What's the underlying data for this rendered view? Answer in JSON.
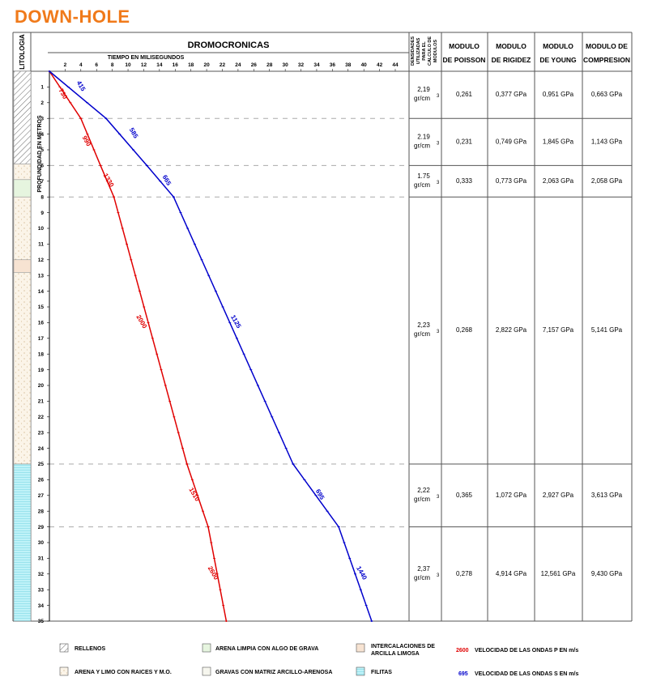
{
  "title": "DOWN-HOLE",
  "colors": {
    "p_wave": "#e00000",
    "s_wave": "#0000cc",
    "title": "#f07a1a",
    "arena_limpia": "#e6f5df",
    "arena_limo": "#fbf4e8",
    "arcilla_limosa": "#f7e3d2",
    "filitas": "#bff2f8"
  },
  "headers": {
    "litologia": "LITOLOGIA",
    "dromocronicas": "DROMOCRONICAS",
    "tiempo": "TIEMPO EN MILISEGUNDOS",
    "profundidad": "PROFUNDIDAD EN METROS",
    "densidades": [
      "DENSIDADES",
      "UTILIZADAS",
      "PARA EL",
      "CALCULO DE",
      "MODULOS"
    ],
    "poisson": [
      "MODULO",
      "DE POISSON"
    ],
    "rigidez": [
      "MODULO",
      "DE RIGIDEZ"
    ],
    "young": [
      "MODULO",
      "DE YOUNG"
    ],
    "compresion": [
      "MODULO DE",
      "COMPRESION"
    ]
  },
  "chart_data": {
    "type": "line",
    "xlabel": "TIEMPO EN MILISEGUNDOS",
    "ylabel": "PROFUNDIDAD EN METROS",
    "xlim": [
      0,
      44
    ],
    "ylim": [
      0,
      35
    ],
    "xticks": [
      2,
      4,
      6,
      8,
      10,
      12,
      14,
      16,
      18,
      20,
      22,
      24,
      26,
      28,
      30,
      32,
      34,
      36,
      38,
      40,
      42,
      44
    ],
    "yticks": [
      1,
      2,
      3,
      4,
      5,
      6,
      7,
      8,
      9,
      10,
      11,
      12,
      13,
      14,
      15,
      16,
      17,
      18,
      19,
      20,
      21,
      22,
      23,
      24,
      25,
      26,
      27,
      28,
      29,
      30,
      31,
      32,
      33,
      34,
      35
    ],
    "series": [
      {
        "name": "VELOCIDAD DE LAS ONDAS P EN m/s",
        "color": "#e00000",
        "points": [
          [
            0,
            0
          ],
          [
            4,
            3
          ],
          [
            6.5,
            6
          ],
          [
            8.2,
            8
          ],
          [
            17.5,
            25
          ],
          [
            20.2,
            29
          ],
          [
            22.5,
            35
          ]
        ],
        "labels": [
          {
            "text": "730",
            "x": 1.5,
            "y": 1.5
          },
          {
            "text": "990",
            "x": 4.5,
            "y": 4.5
          },
          {
            "text": "1330",
            "x": 7.3,
            "y": 7.0
          },
          {
            "text": "2000",
            "x": 11.5,
            "y": 16.0
          },
          {
            "text": "1510",
            "x": 18.2,
            "y": 27.0
          },
          {
            "text": "2600",
            "x": 20.6,
            "y": 32.0
          }
        ]
      },
      {
        "name": "VELOCIDAD DE LAS ONDAS S EN m/s",
        "color": "#0000cc",
        "points": [
          [
            0,
            0
          ],
          [
            7.2,
            3
          ],
          [
            12.4,
            6
          ],
          [
            15.8,
            8
          ],
          [
            31,
            25
          ],
          [
            36.8,
            29
          ],
          [
            41,
            35
          ]
        ],
        "labels": [
          {
            "text": "415",
            "x": 3.8,
            "y": 1.0
          },
          {
            "text": "585",
            "x": 10.5,
            "y": 4.0
          },
          {
            "text": "665",
            "x": 14.7,
            "y": 7.0
          },
          {
            "text": "1125",
            "x": 23.5,
            "y": 16.0
          },
          {
            "text": "695",
            "x": 34.2,
            "y": 27.0
          },
          {
            "text": "1440",
            "x": 39.5,
            "y": 32.0
          }
        ]
      }
    ],
    "layer_boundaries": [
      3,
      6,
      8,
      25,
      29
    ],
    "layers": [
      {
        "from": 0,
        "to": 3,
        "density": "2,19",
        "unit": "gr/cm",
        "poisson": "0,261",
        "rigidez": "0,377 GPa",
        "young": "0,951 GPa",
        "compresion": "0,663 GPa"
      },
      {
        "from": 3,
        "to": 6,
        "density": "2.19",
        "unit": "gr/cm",
        "poisson": "0,231",
        "rigidez": "0,749 GPa",
        "young": "1,845 GPa",
        "compresion": "1,143 GPa"
      },
      {
        "from": 6,
        "to": 8,
        "density": "1.75",
        "unit": "gr/cm",
        "poisson": "0,333",
        "rigidez": "0,773 GPa",
        "young": "2,063 GPa",
        "compresion": "2,058 GPa"
      },
      {
        "from": 8,
        "to": 25,
        "density": "2,23",
        "unit": "gr/cm",
        "poisson": "0,268",
        "rigidez": "2,822 GPa",
        "young": "7,157 GPa",
        "compresion": "5,141 GPa"
      },
      {
        "from": 25,
        "to": 29,
        "density": "2,22",
        "unit": "gr/cm",
        "poisson": "0,365",
        "rigidez": "1,072 GPa",
        "young": "2,927 GPa",
        "compresion": "3,613 GPa"
      },
      {
        "from": 29,
        "to": 35,
        "density": "2,37",
        "unit": "gr/cm",
        "poisson": "0,278",
        "rigidez": "4,914 GPa",
        "young": "12,561 GPa",
        "compresion": "9,430 GPa"
      }
    ],
    "lithology": [
      {
        "from": 0,
        "to": 5.9,
        "type": "rellenos"
      },
      {
        "from": 5.9,
        "to": 6.9,
        "type": "arena_limo"
      },
      {
        "from": 6.9,
        "to": 8.0,
        "type": "arena_limpia"
      },
      {
        "from": 8.0,
        "to": 12.0,
        "type": "arena_limo"
      },
      {
        "from": 12.0,
        "to": 12.8,
        "type": "arcilla_limosa"
      },
      {
        "from": 12.8,
        "to": 25.0,
        "type": "arena_limo"
      },
      {
        "from": 25.0,
        "to": 35.0,
        "type": "filitas"
      }
    ]
  },
  "legend": {
    "rellenos": "RELLENOS",
    "arena_limpia": "ARENA LIMPIA CON ALGO DE GRAVA",
    "arcilla_limosa": [
      "INTERCALACIONES DE",
      "ARCILLA LIMOSA"
    ],
    "arena_limo": "ARENA Y LIMO CON RAICES Y M.O.",
    "gravas": "GRAVAS CON MATRIZ ARCILLO-ARENOSA",
    "filitas": "FILITAS",
    "p_example": "2600",
    "p_text": "VELOCIDAD DE LAS ONDAS P EN m/s",
    "s_example": "695",
    "s_text": "VELOCIDAD DE LAS ONDAS S EN m/s"
  }
}
